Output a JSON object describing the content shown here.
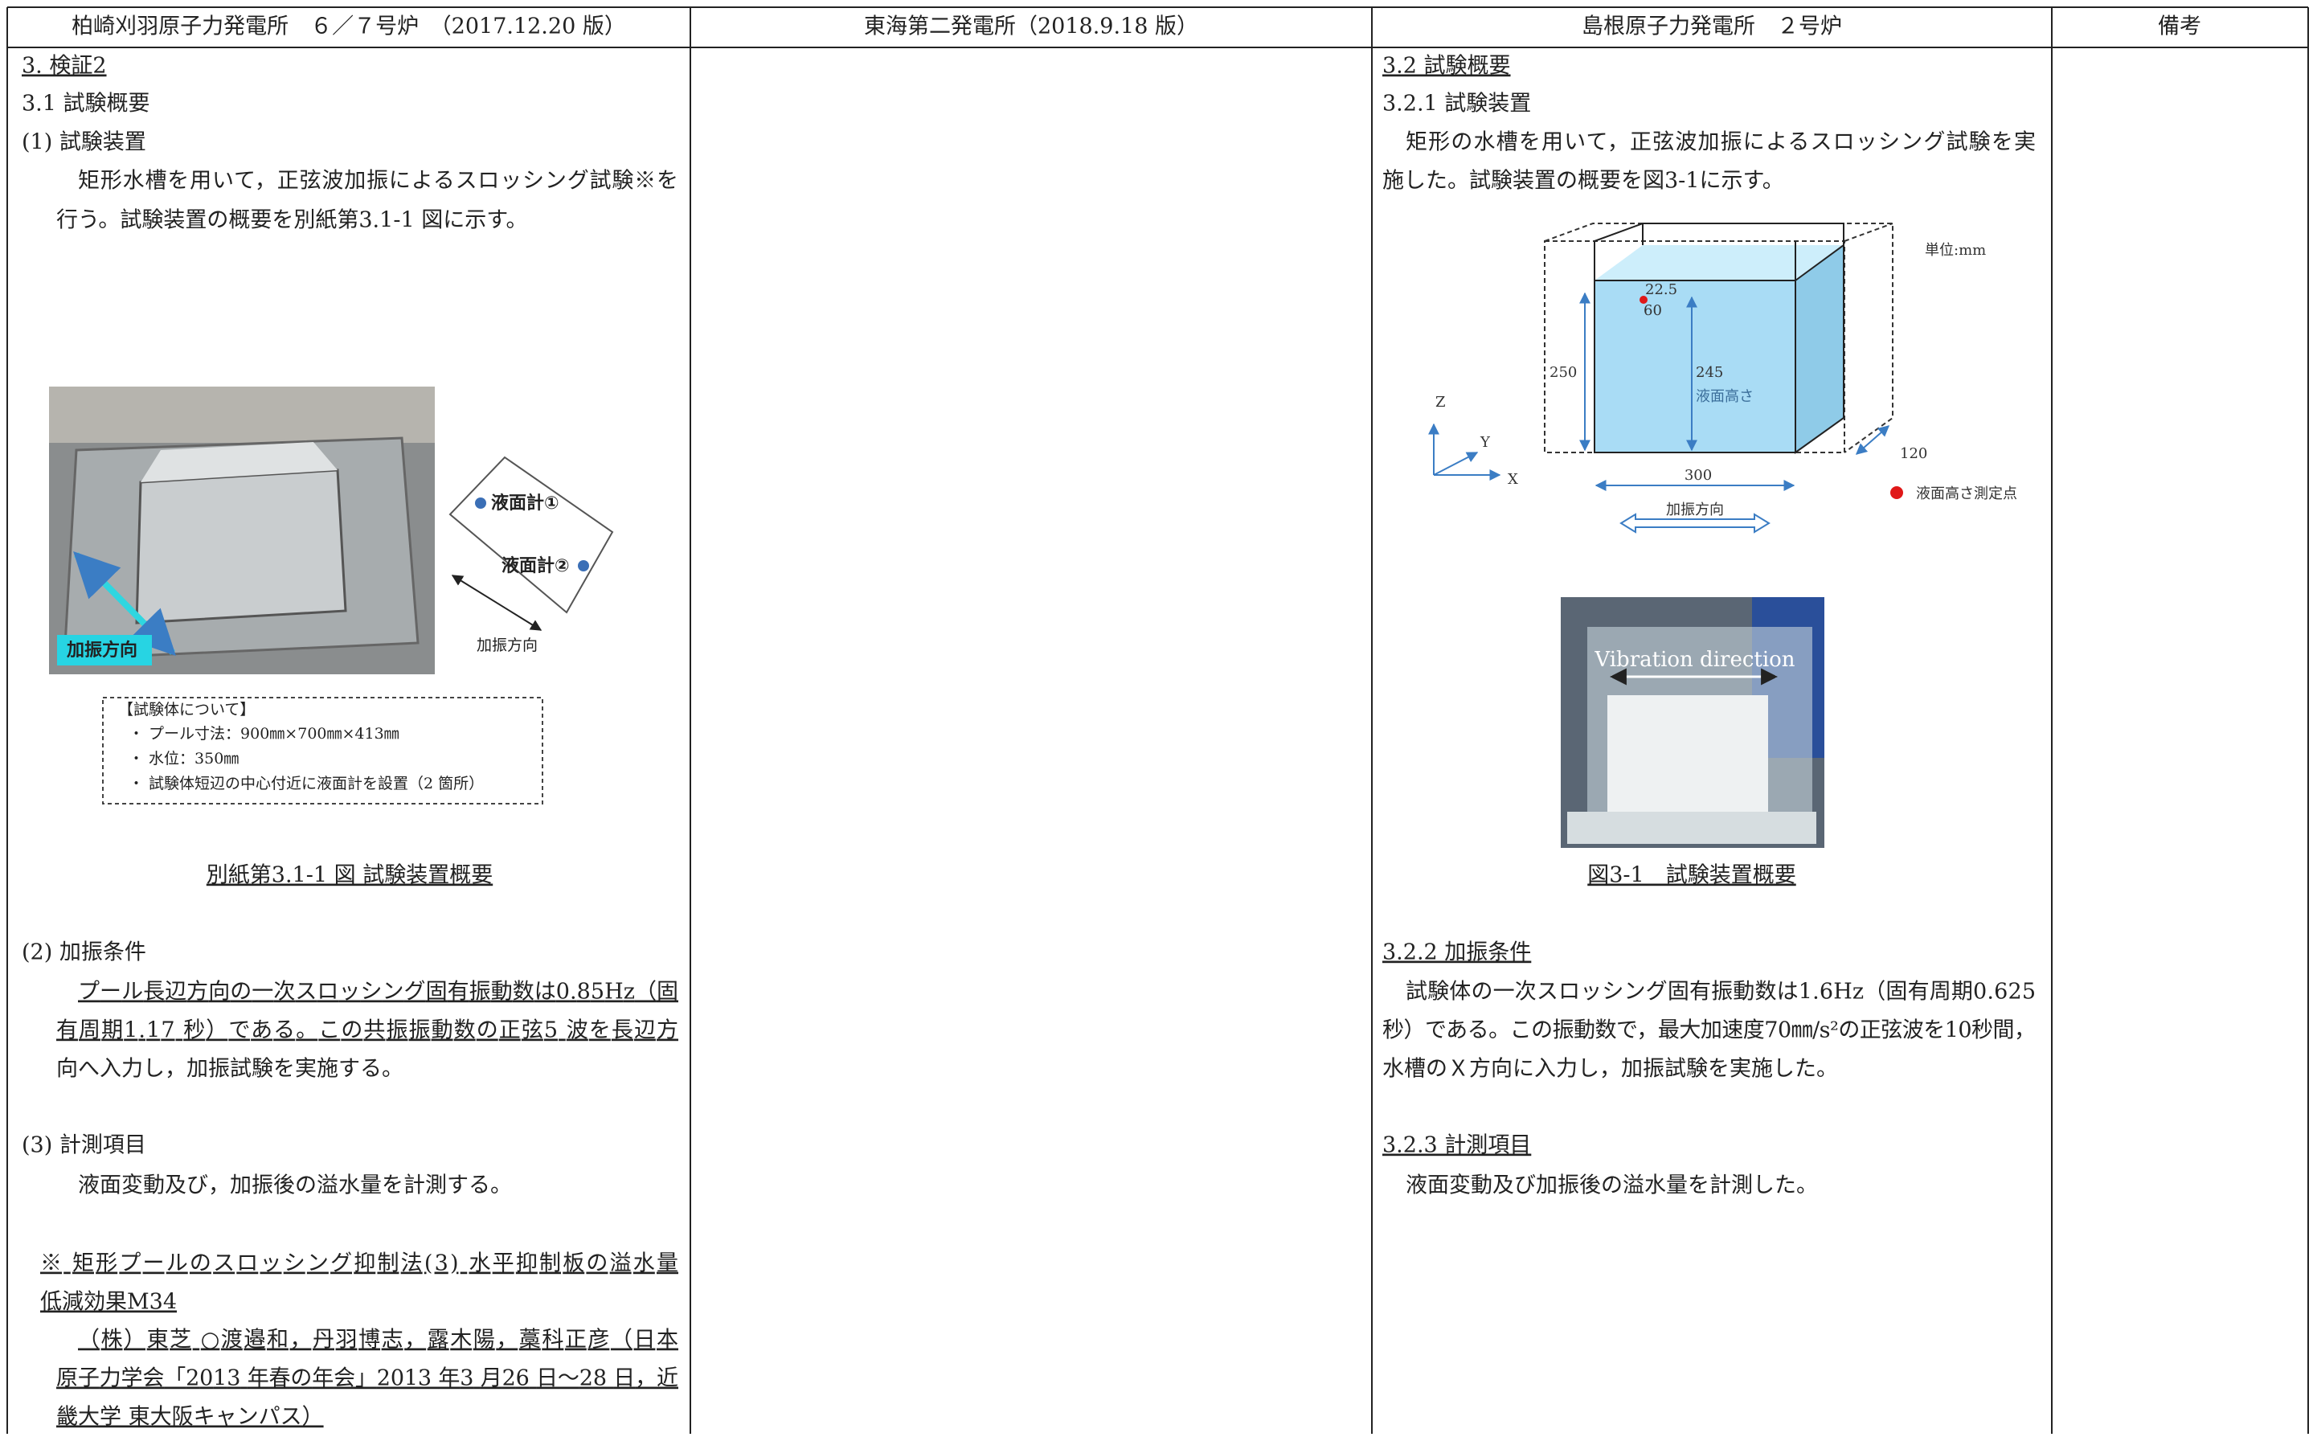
{
  "header": [
    "柏崎刈羽原子力発電所　６／７号炉　（2017.12.20 版）",
    "東海第二発電所（2018.9.18 版）",
    "島根原子力発電所　２号炉",
    "備考"
  ],
  "kk": {
    "section": "3. 検証2",
    "subsection": "3.1 試験概要",
    "item1_heading": "(1) 試験装置",
    "item1_text": [
      "矩形水槽を用いて，正弦波加振によるスロッシング試験※を",
      "行う。試験装置の概要を別紙第3.1-1 図に示す。"
    ],
    "figure": {
      "photo_label": "加振方向",
      "gauge1": "液面計①",
      "gauge2": "液面計②",
      "direction": "加振方向",
      "note_title": "【試験体について】",
      "note_items": [
        "・ プール寸法：900㎜×700㎜×413㎜",
        "・ 水位：350㎜",
        "・ 試験体短辺の中心付近に液面計を設置（2 箇所）"
      ],
      "caption": "別紙第3.1-1 図 試験装置概要"
    },
    "item2_heading": "(2) 加振条件",
    "item2_text": [
      "プール長辺方向の一次スロッシング固有振動数は0.85Hz（固",
      "有周期1.17 秒）である。この共振振動数の正弦5 波を長辺方",
      "向へ入力し，加振試験を実施する。"
    ],
    "item3_heading": "(3) 計測項目",
    "item3_text": [
      "液面変動及び，加振後の溢水量を計測する。"
    ],
    "reference": [
      "※ 矩形プールのスロッシング抑制法(3) 水平抑制板の溢水量",
      "低減効果M34",
      "（株）東芝 ○渡邉和，丹羽博志，露木陽，藁科正彦（日本",
      "原子力学会「2013 年春の年会」2013 年3 月26 日～28 日，近",
      "畿大学 東大阪キャンパス）"
    ]
  },
  "shimane": {
    "section": "3.2 試験概要",
    "subsection": "3.2.1 試験装置",
    "item1_text": [
      "矩形の水槽を用いて，正弦波加振によるスロッシング試験を実",
      "施した。試験装置の概要を図3-1に示す。"
    ],
    "figure": {
      "unit": "単位:mm",
      "dim_22_5": "22.5",
      "dim_60": "60",
      "dim_250": "250",
      "dim_245": "245",
      "level_label": "液面高さ",
      "axis_z": "Z",
      "axis_y": "Y",
      "axis_x": "X",
      "dim_120": "120",
      "dim_300": "300",
      "point_legend": "液面高さ測定点",
      "direction": "加振方向",
      "photo_label": "Vibration direction",
      "caption": "図3-1　試験装置概要"
    },
    "item2_heading": "3.2.2 加振条件",
    "item2_text": [
      "試験体の一次スロッシング固有振動数は1.6Hz（固有周期0.625",
      "秒）である。この振動数で，最大加速度70㎜/s²の正弦波を10秒間，",
      "水槽のＸ方向に入力し，加振試験を実施した。"
    ],
    "item3_heading": "3.2.3 計測項目",
    "item3_text": [
      "液面変動及び加振後の溢水量を計測した。"
    ]
  }
}
